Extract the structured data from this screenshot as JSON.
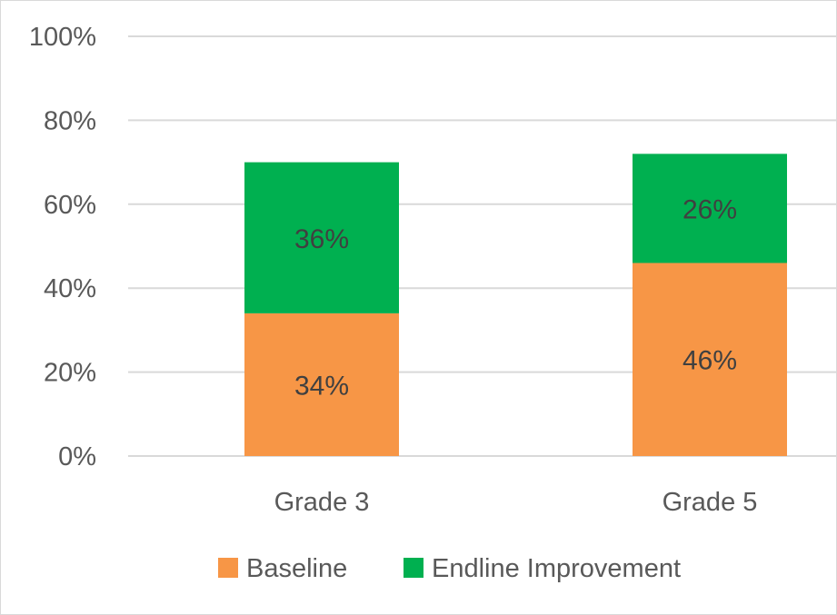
{
  "chart_data": {
    "type": "bar",
    "stacked": true,
    "title": "",
    "xlabel": "",
    "ylabel": "",
    "categories": [
      "Grade 3",
      "Grade 5"
    ],
    "ylim": [
      0,
      100
    ],
    "yticks": [
      "0%",
      "20%",
      "40%",
      "60%",
      "80%",
      "100%"
    ],
    "grid": true,
    "legend_position": "bottom",
    "series": [
      {
        "name": "Baseline",
        "values": [
          34,
          46
        ],
        "labels": [
          "34%",
          "46%"
        ],
        "color": "#f79646"
      },
      {
        "name": "Endline Improvement",
        "values": [
          36,
          26
        ],
        "labels": [
          "36%",
          "26%"
        ],
        "color": "#00b050"
      }
    ]
  }
}
